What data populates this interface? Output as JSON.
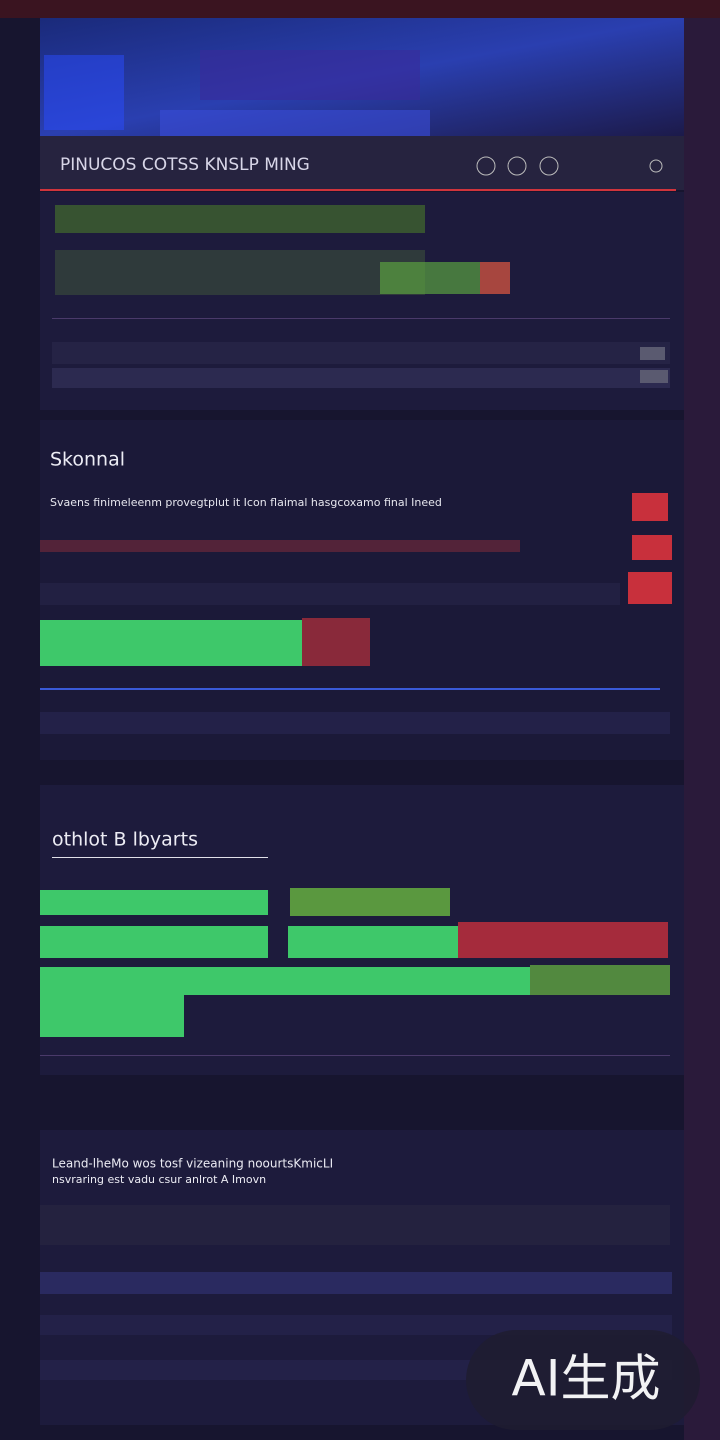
{
  "header": {
    "title": "PINUCOS COTSS KNSLP MING"
  },
  "sections": [
    {
      "title": "Skonnal",
      "text": "Svaens finimeleenm provegtplut it Icon flaimal hasgcoxamo final Ineed"
    },
    {
      "title": "othlot B lbyarts"
    },
    {
      "title": "Leand-lheMo wos tosf vizeaning noourtsKmicLI",
      "text": "nsvraring est vadu csur anlrot A Imovn"
    }
  ],
  "watermark": "AI生成"
}
